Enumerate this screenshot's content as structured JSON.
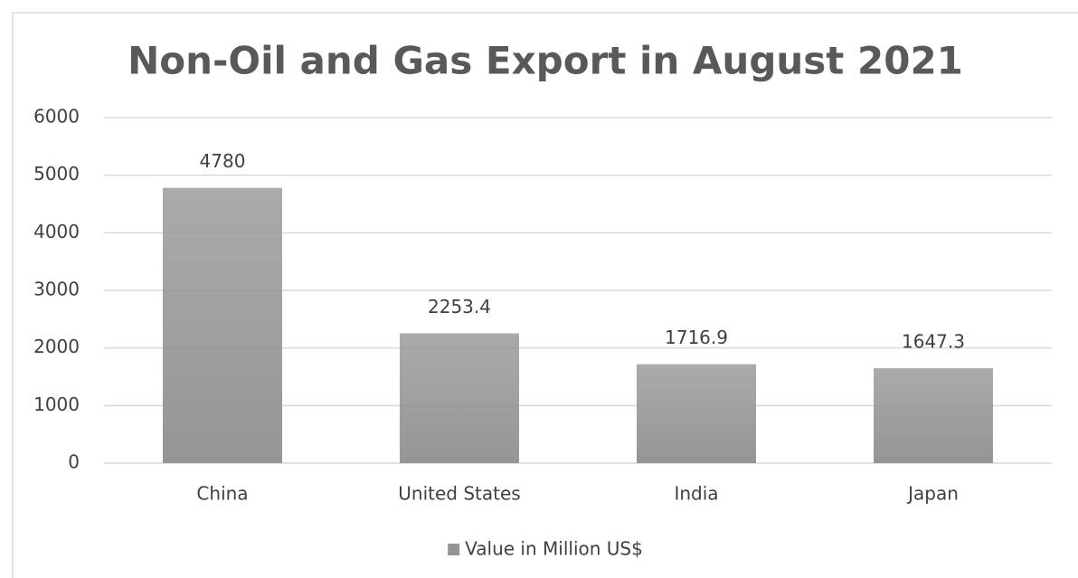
{
  "chart_data": {
    "type": "bar",
    "title": "Non-Oil and Gas Export in August 2021",
    "categories": [
      "China",
      "United States",
      "India",
      "Japan"
    ],
    "series": [
      {
        "name": "Value in Million US$",
        "color": "#959595",
        "values": [
          4780,
          2253.4,
          1716.9,
          1647.3
        ]
      }
    ],
    "ylim": [
      0,
      6000
    ],
    "yticks": [
      0,
      1000,
      2000,
      3000,
      4000,
      5000,
      6000
    ],
    "grid": true,
    "legend": "bottom",
    "data_labels": true
  }
}
